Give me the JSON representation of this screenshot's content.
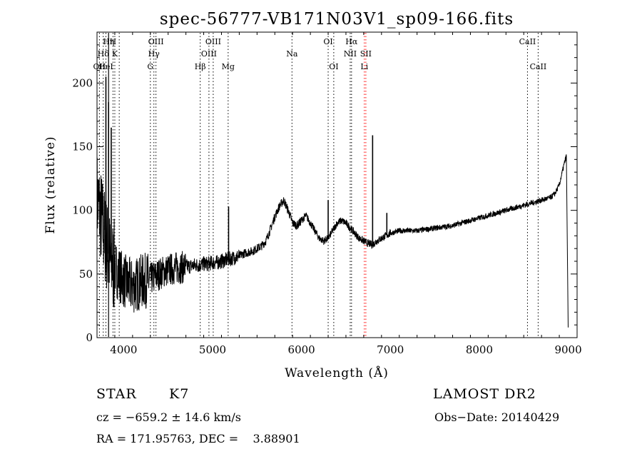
{
  "chart_data": {
    "type": "line",
    "title": "spec-56777-VB171N03V1_sp09-166.fits",
    "xlabel": "Wavelength (Å)",
    "ylabel": "Flux (relative)",
    "xlim": [
      3700,
      9100
    ],
    "ylim": [
      0,
      240
    ],
    "xticks": [
      4000,
      5000,
      6000,
      7000,
      8000,
      9000
    ],
    "yticks": [
      0,
      50,
      100,
      150,
      200
    ],
    "grid": false,
    "series": [
      {
        "color": "#000000",
        "x": [
          3700,
          3760,
          3800,
          3850,
          3900,
          3950,
          4000,
          4050,
          4100,
          4150,
          4200,
          4250,
          4300,
          4350,
          4400,
          4450,
          4500,
          4550,
          4600,
          4650,
          4700,
          4750,
          4800,
          4850,
          4900,
          4950,
          5000,
          5050,
          5100,
          5150,
          5200,
          5250,
          5300,
          5350,
          5400,
          5450,
          5500,
          5550,
          5600,
          5650,
          5700,
          5750,
          5800,
          5850,
          5900,
          5950,
          6000,
          6050,
          6100,
          6150,
          6200,
          6250,
          6300,
          6350,
          6400,
          6450,
          6500,
          6550,
          6600,
          6650,
          6700,
          6750,
          6800,
          6850,
          6900,
          6950,
          7000,
          7100,
          7200,
          7300,
          7400,
          7500,
          7600,
          7700,
          7800,
          7900,
          8000,
          8100,
          8200,
          8300,
          8400,
          8500,
          8600,
          8700,
          8750,
          8800,
          8850,
          8900,
          8950,
          8980,
          9000
        ],
        "y": [
          110,
          90,
          75,
          60,
          55,
          50,
          45,
          42,
          40,
          42,
          44,
          45,
          46,
          48,
          50,
          52,
          53,
          54,
          55,
          55,
          56,
          56,
          57,
          57,
          58,
          58,
          59,
          59,
          60,
          61,
          62,
          63,
          64,
          66,
          67,
          68,
          70,
          72,
          76,
          85,
          95,
          103,
          108,
          100,
          90,
          88,
          92,
          96,
          90,
          84,
          78,
          76,
          78,
          84,
          90,
          92,
          90,
          86,
          82,
          78,
          76,
          74,
          73,
          76,
          78,
          80,
          82,
          84,
          84,
          84,
          85,
          86,
          87,
          88,
          90,
          92,
          94,
          96,
          98,
          100,
          102,
          104,
          106,
          108,
          109,
          110,
          113,
          120,
          135,
          143,
          8
        ]
      }
    ],
    "spikes": [
      {
        "x": 3800,
        "y": 205
      },
      {
        "x": 3830,
        "y": 185
      },
      {
        "x": 3860,
        "y": 165
      },
      {
        "x": 5180,
        "y": 103
      },
      {
        "x": 6300,
        "y": 108
      },
      {
        "x": 6800,
        "y": 159
      },
      {
        "x": 6960,
        "y": 98
      }
    ],
    "line_markers": [
      {
        "x": 3727,
        "label": "OII",
        "row": 3,
        "style": "dotted",
        "color": "#000000"
      },
      {
        "x": 3770,
        "label": "Hδ",
        "row": 2,
        "style": "dotted",
        "color": "#000000"
      },
      {
        "x": 3800,
        "label": "HeI",
        "row": 3,
        "style": "dotted",
        "color": "#000000"
      },
      {
        "x": 3830,
        "label": "Hη",
        "row": 1,
        "style": "solid",
        "color": "#000000"
      },
      {
        "x": 3880,
        "label": "H",
        "row": 1,
        "style": "dotted",
        "color": "#000000"
      },
      {
        "x": 3900,
        "label": "K",
        "row": 2,
        "style": "dotted",
        "color": "#000000"
      },
      {
        "x": 3950,
        "label": "",
        "row": 1,
        "style": "dotted",
        "color": "#000000"
      },
      {
        "x": 4300,
        "label": "G",
        "row": 3,
        "style": "dotted",
        "color": "#000000"
      },
      {
        "x": 4340,
        "label": "Hγ",
        "row": 2,
        "style": "dotted",
        "color": "#000000"
      },
      {
        "x": 4363,
        "label": "OIII",
        "row": 1,
        "style": "dotted",
        "color": "#000000"
      },
      {
        "x": 4861,
        "label": "Hβ",
        "row": 3,
        "style": "dotted",
        "color": "#000000"
      },
      {
        "x": 4959,
        "label": "OIII",
        "row": 2,
        "style": "dotted",
        "color": "#000000"
      },
      {
        "x": 5007,
        "label": "OIII",
        "row": 1,
        "style": "dotted",
        "color": "#000000"
      },
      {
        "x": 5175,
        "label": "Mg",
        "row": 3,
        "style": "dotted",
        "color": "#000000"
      },
      {
        "x": 5893,
        "label": "Na",
        "row": 2,
        "style": "dotted",
        "color": "#000000"
      },
      {
        "x": 6300,
        "label": "OI",
        "row": 1,
        "style": "dotted",
        "color": "#000000"
      },
      {
        "x": 6363,
        "label": "OI",
        "row": 3,
        "style": "dotted",
        "color": "#000000"
      },
      {
        "x": 6548,
        "label": "NII",
        "row": 2,
        "style": "dotted",
        "color": "#000000"
      },
      {
        "x": 6563,
        "label": "Hα",
        "row": 1,
        "style": "dotted",
        "color": "#000000"
      },
      {
        "x": 6707,
        "label": "Li",
        "row": 3,
        "style": "dotted",
        "color": "#ff0000"
      },
      {
        "x": 6724,
        "label": "SII",
        "row": 2,
        "style": "dotted",
        "color": "#ff0000"
      },
      {
        "x": 8542,
        "label": "CaII",
        "row": 1,
        "style": "dotted",
        "color": "#000000"
      },
      {
        "x": 8662,
        "label": "CaII",
        "row": 3,
        "style": "dotted",
        "color": "#000000"
      }
    ]
  },
  "info": {
    "class_label": "STAR",
    "subclass": "K7",
    "survey": "LAMOST DR2",
    "redshift_line": "cz = −659.2 ± 14.6 km/s",
    "obs_date": "Obs−Date: 20140429",
    "coords": "RA = 171.95763, DEC =    3.88901"
  }
}
